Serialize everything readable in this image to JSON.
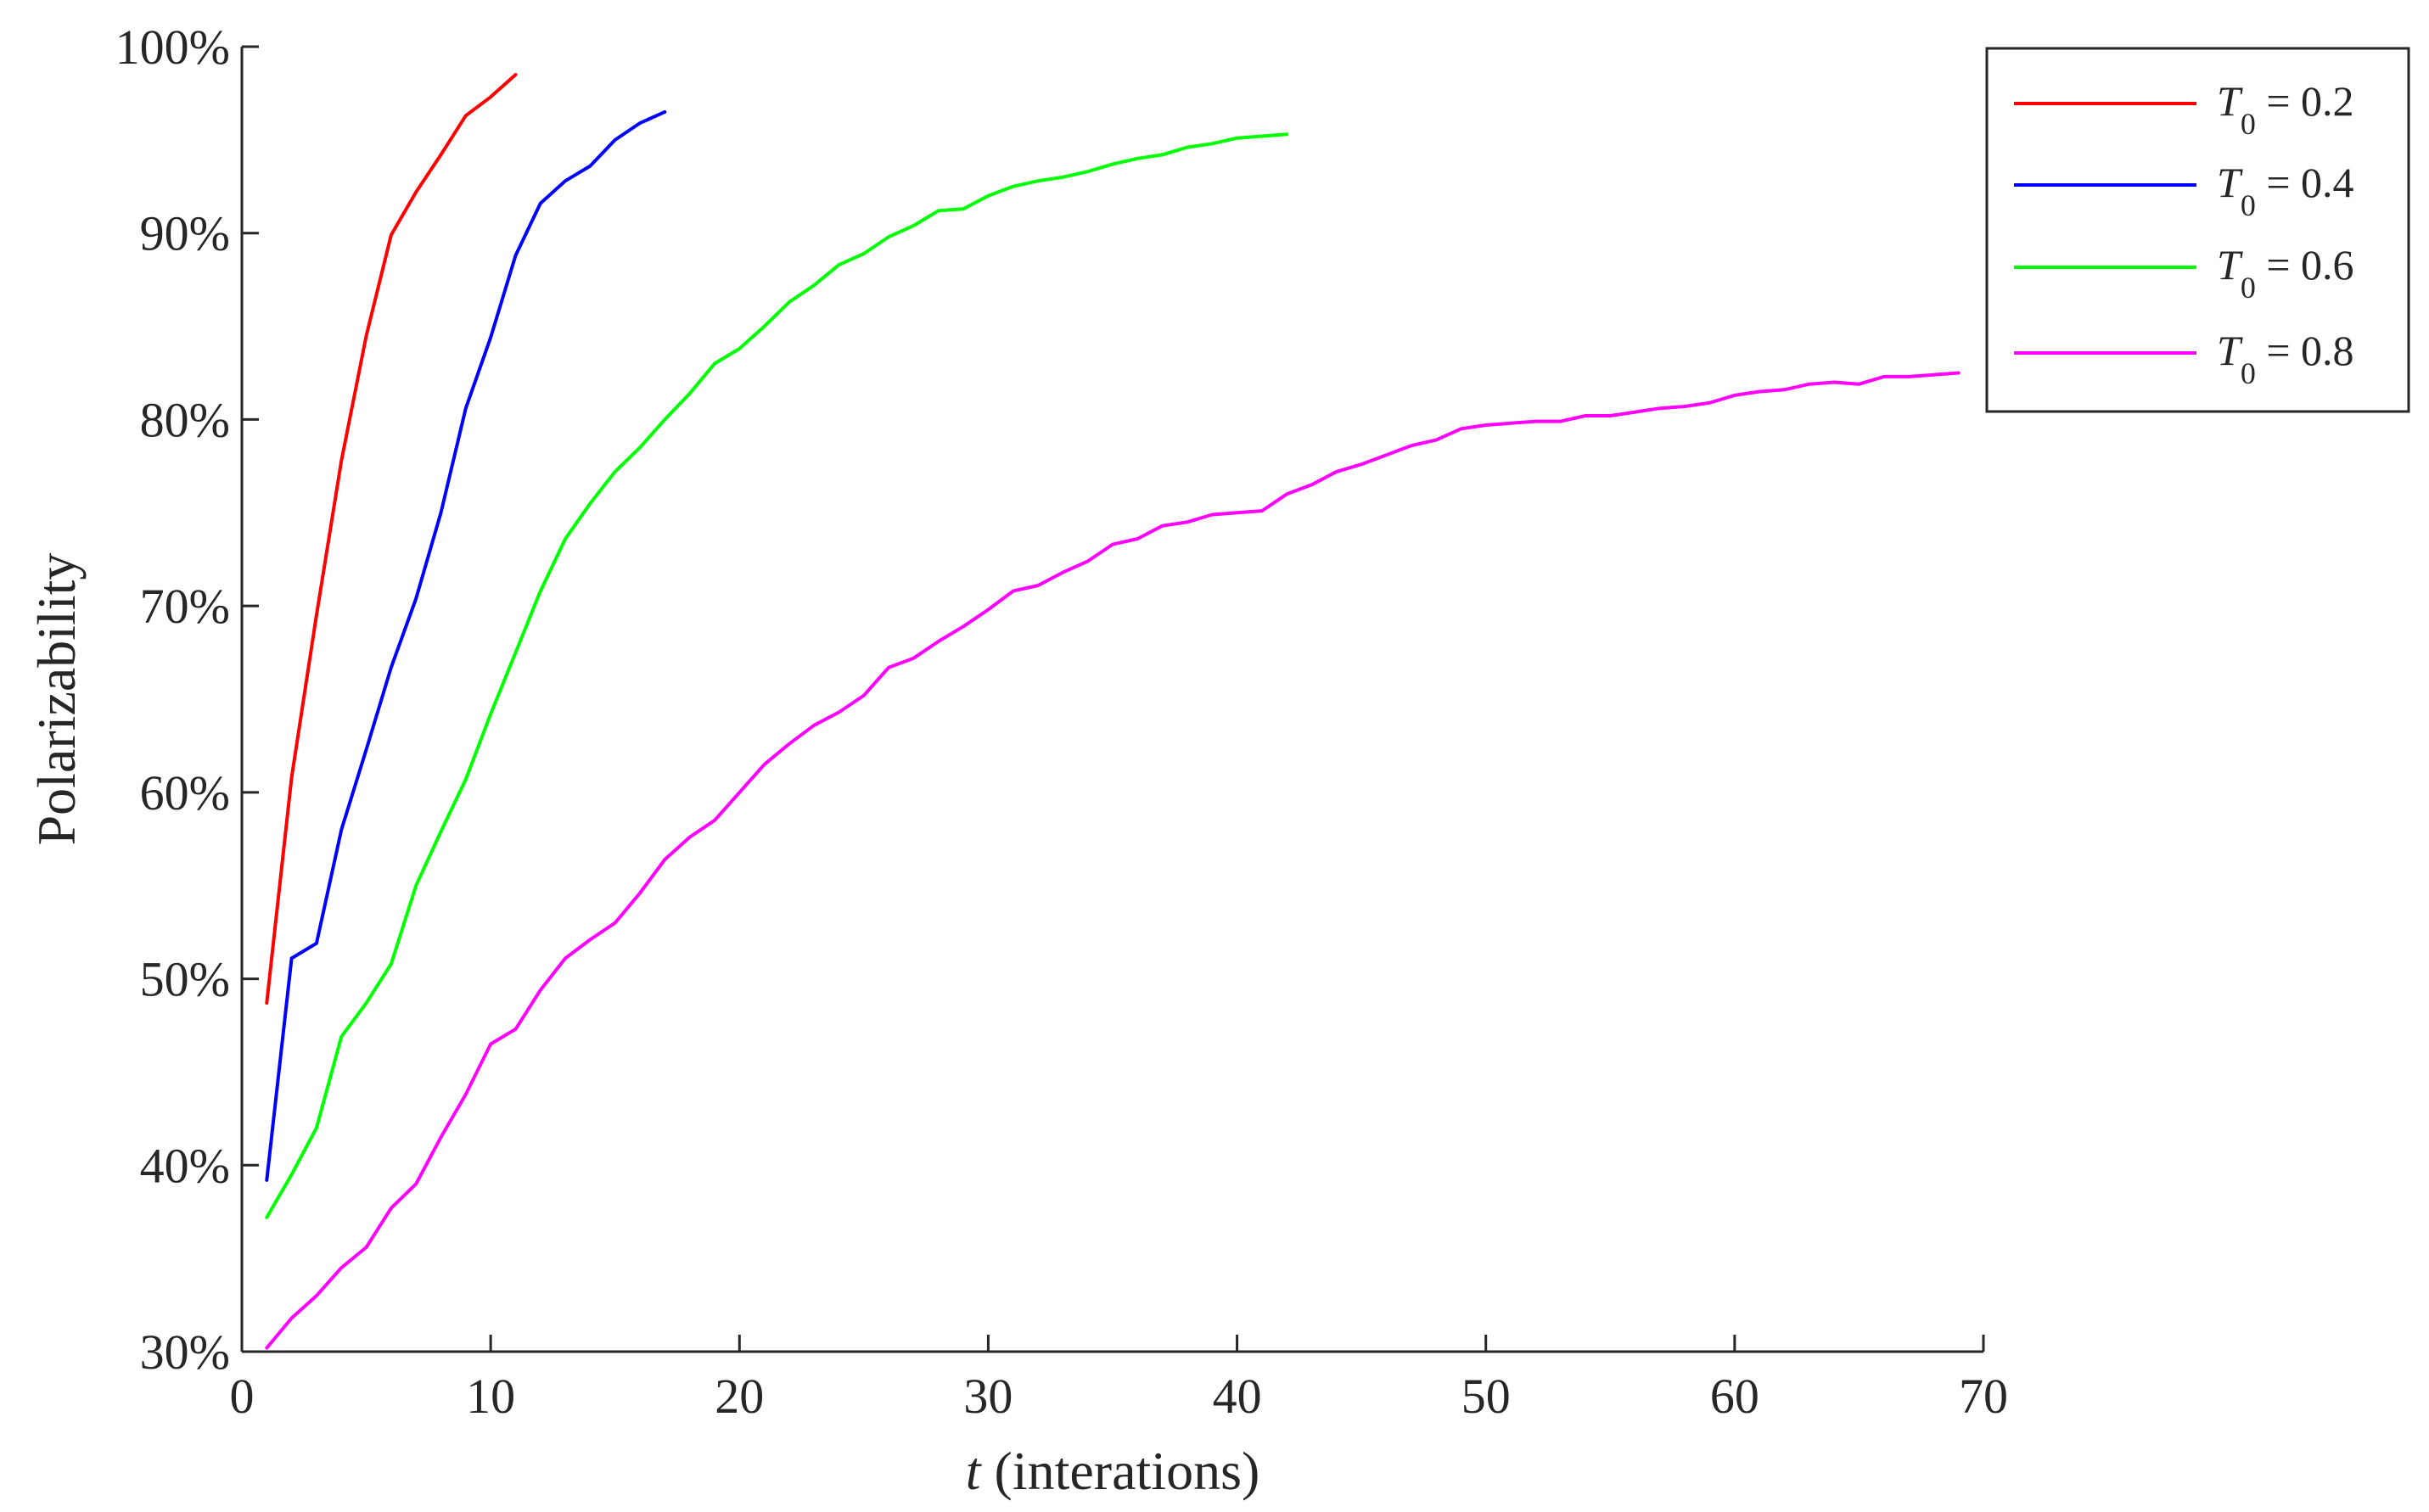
{
  "chart_data": {
    "type": "line",
    "xlabel_var": "t",
    "xlabel_rest": " (interations)",
    "ylabel": "Polarizability",
    "xlim": [
      0,
      70
    ],
    "ylim": [
      30,
      100
    ],
    "xticks": [
      0,
      10,
      20,
      30,
      40,
      50,
      60,
      70
    ],
    "yticks": [
      30,
      40,
      50,
      60,
      70,
      80,
      90,
      100
    ],
    "ytick_format": "percent",
    "grid": false,
    "legend_position": "top-right, outside plot",
    "series": [
      {
        "name": "T0 = 0.2",
        "label_var": "T",
        "label_sub": "0",
        "label_rest": " = 0.2",
        "color": "#ff0000",
        "x": [
          1,
          2,
          3,
          4,
          5,
          6,
          7,
          8,
          9,
          10,
          11
        ],
        "values": [
          48.7,
          60.8,
          69.5,
          77.8,
          84.5,
          89.9,
          92.2,
          94.2,
          96.3,
          97.3,
          98.5
        ]
      },
      {
        "name": "T0 = 0.4",
        "label_var": "T",
        "label_sub": "0",
        "label_rest": " = 0.4",
        "color": "#0000ff",
        "x": [
          1,
          2,
          3,
          4,
          5,
          6,
          7,
          8,
          9,
          10,
          11,
          12,
          13,
          14,
          15,
          16,
          17
        ],
        "values": [
          39.2,
          51.1,
          51.9,
          58.0,
          62.3,
          66.7,
          70.4,
          75.0,
          80.6,
          84.4,
          88.8,
          91.6,
          92.8,
          93.6,
          95.0,
          95.9,
          96.5
        ]
      },
      {
        "name": "T0 = 0.6",
        "label_var": "T",
        "label_sub": "0",
        "label_rest": " = 0.6",
        "color": "#00ff00",
        "x": [
          1,
          2,
          3,
          4,
          5,
          6,
          7,
          8,
          9,
          10,
          11,
          12,
          13,
          14,
          15,
          16,
          17,
          18,
          19,
          20,
          21,
          22,
          23,
          24,
          25,
          26,
          27,
          28,
          29,
          30,
          31,
          32,
          33,
          34,
          35,
          36,
          37,
          38,
          39,
          40,
          41,
          42
        ],
        "values": [
          37.2,
          39.5,
          42.0,
          46.9,
          48.7,
          50.8,
          55.0,
          57.9,
          60.7,
          64.2,
          67.5,
          70.8,
          73.6,
          75.5,
          77.2,
          78.5,
          80.0,
          81.4,
          83.0,
          83.8,
          85.0,
          86.3,
          87.2,
          88.3,
          88.9,
          89.8,
          90.4,
          91.2,
          91.3,
          92.0,
          92.5,
          92.8,
          93.0,
          93.3,
          93.7,
          94.0,
          94.2,
          94.6,
          94.8,
          95.1,
          95.2,
          95.3
        ]
      },
      {
        "name": "T0 = 0.8",
        "label_var": "T",
        "label_sub": "0",
        "label_rest": " = 0.8",
        "color": "#ff00ff",
        "x": [
          1,
          2,
          3,
          4,
          5,
          6,
          7,
          8,
          9,
          10,
          11,
          12,
          13,
          14,
          15,
          16,
          17,
          18,
          19,
          20,
          21,
          22,
          23,
          24,
          25,
          26,
          27,
          28,
          29,
          30,
          31,
          32,
          33,
          34,
          35,
          36,
          37,
          38,
          39,
          40,
          41,
          42,
          43,
          44,
          45,
          46,
          47,
          48,
          49,
          50,
          51,
          52,
          53,
          54,
          55,
          56,
          57,
          58,
          59,
          60,
          61,
          62,
          63,
          64,
          65,
          66,
          67,
          68,
          69
        ],
        "values": [
          30.2,
          31.8,
          33.0,
          34.5,
          35.6,
          37.7,
          39.0,
          41.5,
          43.8,
          46.5,
          47.3,
          49.4,
          51.1,
          52.1,
          53.0,
          54.6,
          56.4,
          57.6,
          58.5,
          60.0,
          61.5,
          62.6,
          63.6,
          64.3,
          65.2,
          66.7,
          67.2,
          68.1,
          68.9,
          69.8,
          70.8,
          71.1,
          71.8,
          72.4,
          73.3,
          73.6,
          74.3,
          74.5,
          74.9,
          75.0,
          75.1,
          76.0,
          76.5,
          77.2,
          77.6,
          78.1,
          78.6,
          78.9,
          79.5,
          79.7,
          79.8,
          79.9,
          79.9,
          80.2,
          80.2,
          80.4,
          80.6,
          80.7,
          80.9,
          81.3,
          81.5,
          81.6,
          81.9,
          82.0,
          81.9,
          82.3,
          82.3,
          82.4,
          82.5
        ]
      }
    ]
  }
}
